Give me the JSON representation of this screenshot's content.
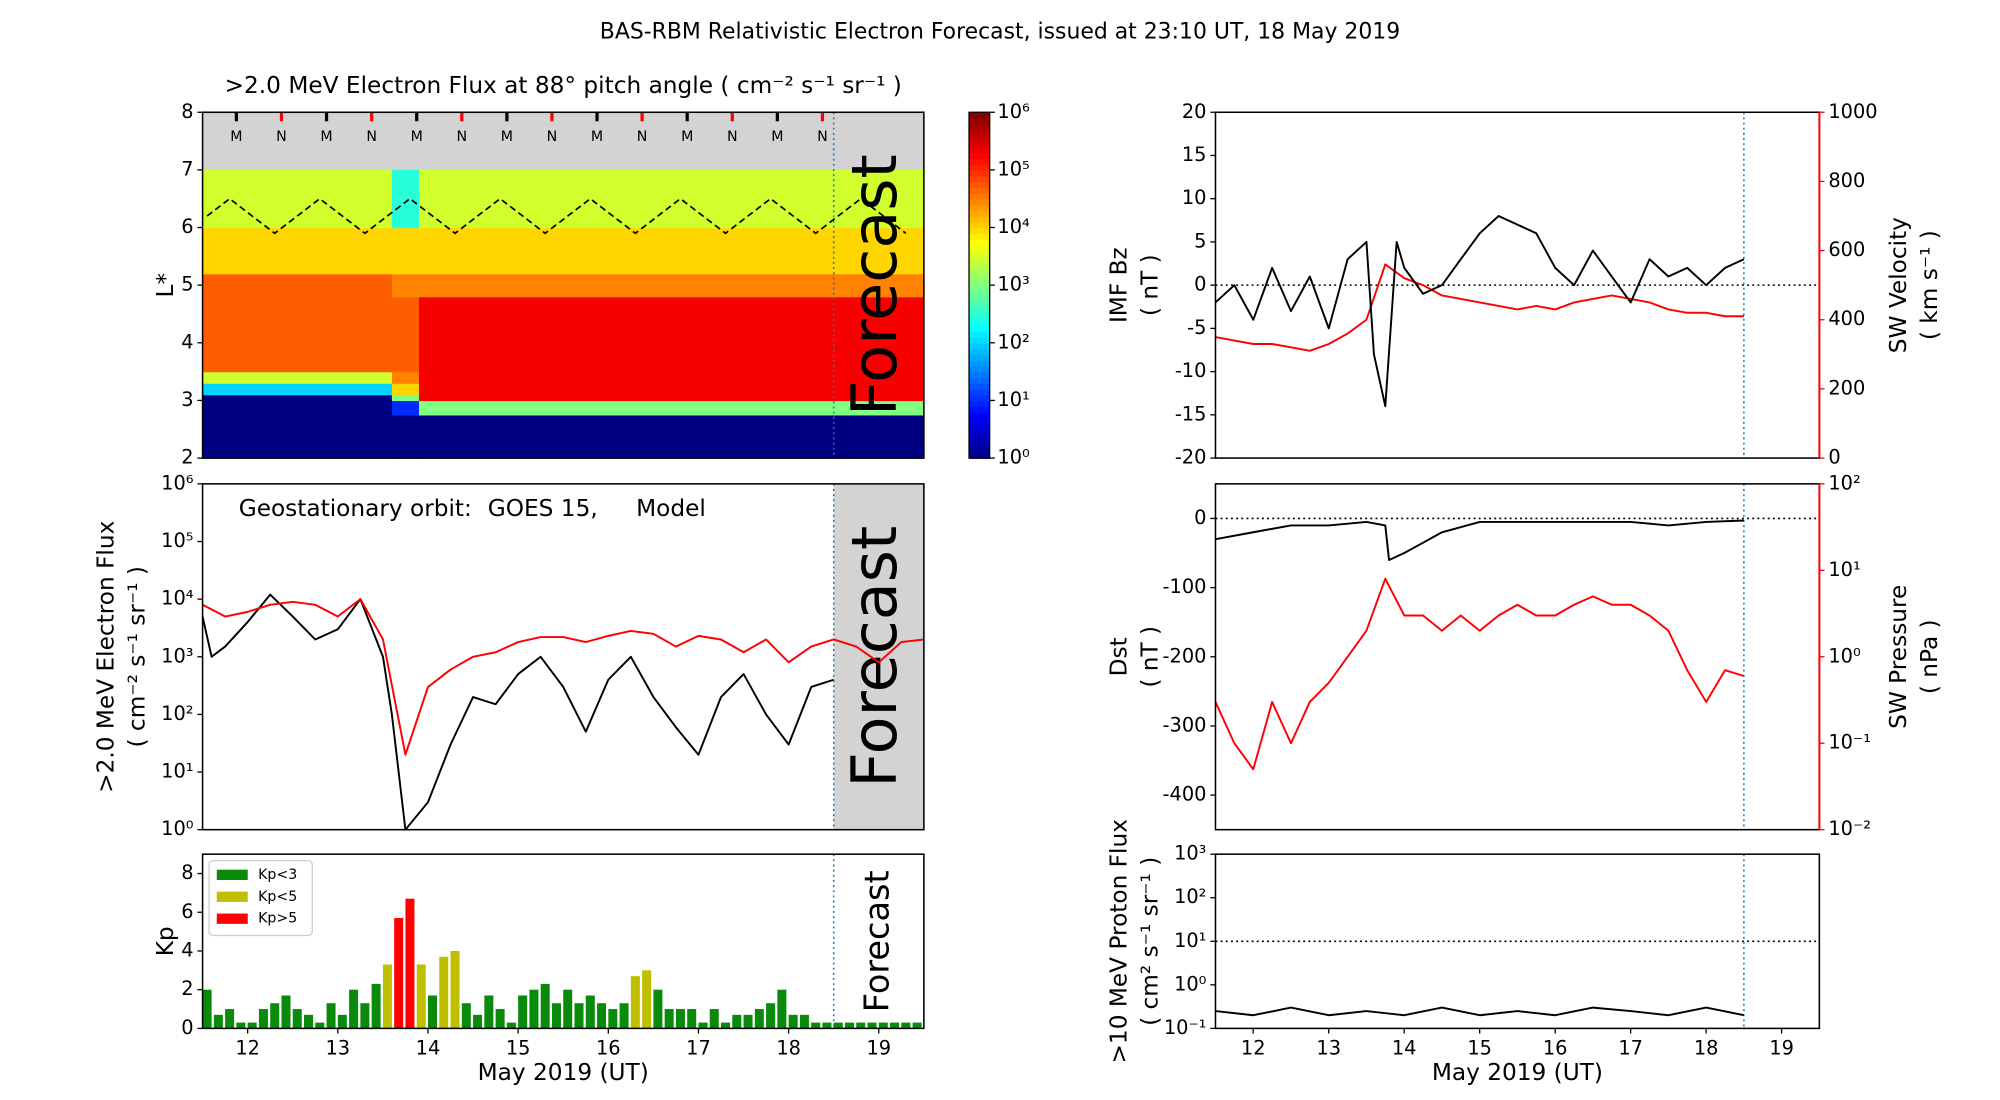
{
  "title": "BAS-RBM Relativistic Electron Forecast, issued at 23:10 UT, 18 May 2019",
  "chart_data": [
    {
      "type": "heatmap",
      "title": ">2.0 MeV Electron Flux at 88° pitch angle ( cm⁻² s⁻¹ sr⁻¹ )",
      "ylabel": [
        "L*"
      ],
      "xlim": [
        11.5,
        19.5
      ],
      "ylim": [
        2,
        8
      ],
      "yticks": [
        2,
        3,
        4,
        5,
        6,
        7,
        8
      ],
      "colormap": "jet",
      "x_edges": [
        11.5,
        13.6,
        13.9,
        19.5
      ],
      "y_edges": [
        2,
        2.75,
        3,
        3.1,
        3.3,
        3.5,
        4.8,
        5.2,
        6,
        7
      ],
      "z": [
        [
          1,
          1,
          1
        ],
        [
          1,
          10,
          1000
        ],
        [
          1,
          1000,
          200000
        ],
        [
          100,
          10000,
          200000
        ],
        [
          3000,
          30000,
          200000
        ],
        [
          50000,
          50000,
          200000
        ],
        [
          50000,
          30000,
          30000
        ],
        [
          10000,
          10000,
          10000
        ],
        [
          3000,
          300,
          3000
        ]
      ],
      "colorbar": {
        "lim": [
          1,
          1000000
        ],
        "ticks": [
          {
            "value": 1,
            "label": "10⁰"
          },
          {
            "value": 10,
            "label": "10¹"
          },
          {
            "value": 100,
            "label": "10²"
          },
          {
            "value": 1000,
            "label": "10³"
          },
          {
            "value": 10000,
            "label": "10⁴"
          },
          {
            "value": 100000,
            "label": "10⁵"
          },
          {
            "value": 1000000,
            "label": "10⁶"
          }
        ]
      },
      "dashed_line": {
        "color": "#000000",
        "x": [
          11.55,
          11.8,
          12.05,
          12.3,
          12.55,
          12.8,
          13.05,
          13.3,
          13.55,
          13.8,
          14.05,
          14.3,
          14.55,
          14.8,
          15.05,
          15.3,
          15.55,
          15.8,
          16.05,
          16.3,
          16.55,
          16.8,
          17.05,
          17.3,
          17.55,
          17.8,
          18.05,
          18.3,
          18.55,
          18.8,
          19.05,
          19.3
        ],
        "values": [
          6.2,
          6.5,
          6.2,
          5.9,
          6.2,
          6.5,
          6.2,
          5.9,
          6.2,
          6.5,
          6.2,
          5.9,
          6.2,
          6.5,
          6.2,
          5.9,
          6.2,
          6.5,
          6.2,
          5.9,
          6.2,
          6.5,
          6.2,
          5.9,
          6.2,
          6.5,
          6.2,
          5.9,
          6.2,
          6.5,
          6.2,
          5.9
        ]
      },
      "markers": [
        {
          "label": "M",
          "color": "#000000",
          "x": [
            11.875,
            12.875,
            13.875,
            14.875,
            15.875,
            16.875,
            17.875
          ]
        },
        {
          "label": "N",
          "color": "#ff0000",
          "x": [
            12.375,
            13.375,
            14.375,
            15.375,
            16.375,
            17.375,
            18.375
          ]
        }
      ],
      "forecast_start": 18.5,
      "forecast_text": "Forecast"
    },
    {
      "type": "line",
      "annotation": "Geostationary orbit:",
      "ylabel": [
        ">2.0 MeV Electron Flux",
        "( cm⁻² s⁻¹ sr⁻¹ )"
      ],
      "xlim": [
        11.5,
        19.5
      ],
      "ylim": [
        1,
        1000000
      ],
      "ylog": true,
      "yticks": [
        {
          "value": 1,
          "label": "10⁰"
        },
        {
          "value": 10,
          "label": "10¹"
        },
        {
          "value": 100,
          "label": "10²"
        },
        {
          "value": 1000,
          "label": "10³"
        },
        {
          "value": 10000,
          "label": "10⁴"
        },
        {
          "value": 100000,
          "label": "10⁵"
        },
        {
          "value": 1000000,
          "label": "10⁶"
        }
      ],
      "series": [
        {
          "name": "GOES 15,",
          "color": "#000000",
          "x": [
            11.5,
            11.6,
            11.75,
            12,
            12.25,
            12.5,
            12.75,
            13,
            13.25,
            13.5,
            13.6,
            13.75,
            14,
            14.25,
            14.5,
            14.75,
            15,
            15.25,
            15.5,
            15.75,
            16,
            16.25,
            16.5,
            16.75,
            17,
            17.25,
            17.5,
            17.75,
            18,
            18.25,
            18.5
          ],
          "values": [
            5000,
            1000,
            1500,
            4000,
            12000,
            5000,
            2000,
            3000,
            10000,
            1000,
            100,
            1,
            3,
            30,
            200,
            150,
            500,
            1000,
            300,
            50,
            400,
            1000,
            200,
            60,
            20,
            200,
            500,
            100,
            30,
            300,
            400
          ]
        },
        {
          "name": "Model",
          "color": "#ff0000",
          "x": [
            11.5,
            11.75,
            12,
            12.25,
            12.5,
            12.75,
            13,
            13.25,
            13.5,
            13.75,
            14,
            14.25,
            14.5,
            14.75,
            15,
            15.25,
            15.5,
            15.75,
            16,
            16.25,
            16.5,
            16.75,
            17,
            17.25,
            17.5,
            17.75,
            18,
            18.25,
            18.5,
            18.75,
            19,
            19.25,
            19.5
          ],
          "values": [
            8000,
            5000,
            6000,
            8000,
            9000,
            8000,
            5000,
            10000,
            2000,
            20,
            300,
            600,
            1000,
            1200,
            1800,
            2200,
            2200,
            1800,
            2300,
            2800,
            2500,
            1500,
            2300,
            2000,
            1200,
            2000,
            800,
            1500,
            2000,
            1500,
            800,
            1800,
            2000
          ]
        }
      ],
      "forecast_start": 18.5,
      "forecast_shade": true,
      "forecast_text": "Forecast"
    },
    {
      "type": "bar",
      "ylabel": [
        "Kp"
      ],
      "xlabel": "May 2019 (UT)",
      "xlim": [
        11.5,
        19.5
      ],
      "xticks": [
        12,
        13,
        14,
        15,
        16,
        17,
        18,
        19
      ],
      "ylim": [
        0,
        9
      ],
      "yticks": [
        0,
        2,
        4,
        6,
        8
      ],
      "legend": "upper left",
      "x": [
        11.5,
        11.625,
        11.75,
        11.875,
        12,
        12.125,
        12.25,
        12.375,
        12.5,
        12.625,
        12.75,
        12.875,
        13,
        13.125,
        13.25,
        13.375,
        13.5,
        13.625,
        13.75,
        13.875,
        14,
        14.125,
        14.25,
        14.375,
        14.5,
        14.625,
        14.75,
        14.875,
        15,
        15.125,
        15.25,
        15.375,
        15.5,
        15.625,
        15.75,
        15.875,
        16,
        16.125,
        16.25,
        16.375,
        16.5,
        16.625,
        16.75,
        16.875,
        17,
        17.125,
        17.25,
        17.375,
        17.5,
        17.625,
        17.75,
        17.875,
        18,
        18.125,
        18.25,
        18.375,
        18.5,
        18.625,
        18.75,
        18.875,
        19,
        19.125,
        19.25,
        19.375
      ],
      "series": [
        {
          "name": "Kp<3",
          "color": "#0a8a0a",
          "values": [
            2.0,
            0.7,
            1.0,
            0.3,
            0.3,
            1.0,
            1.3,
            1.7,
            1.0,
            0.7,
            0.3,
            1.3,
            0.7,
            2.0,
            1.3,
            2.3,
            null,
            null,
            null,
            null,
            1.7,
            null,
            null,
            1.3,
            0.7,
            1.7,
            1.0,
            0.3,
            1.7,
            2.0,
            2.3,
            1.3,
            2.0,
            1.3,
            1.7,
            1.3,
            1.0,
            1.3,
            null,
            null,
            2.0,
            1.0,
            1.0,
            1.0,
            0.3,
            1.0,
            0.3,
            0.7,
            0.7,
            1.0,
            1.3,
            2.0,
            0.7,
            0.7,
            0.3,
            0.3,
            0.3,
            0.3,
            0.3,
            0.3,
            0.3,
            0.3,
            0.3,
            0.3
          ]
        },
        {
          "name": "Kp<5",
          "color": "#bfbf00",
          "values": [
            null,
            null,
            null,
            null,
            null,
            null,
            null,
            null,
            null,
            null,
            null,
            null,
            null,
            null,
            null,
            null,
            3.3,
            null,
            null,
            3.3,
            null,
            3.7,
            4.0,
            null,
            null,
            null,
            null,
            null,
            null,
            null,
            null,
            null,
            null,
            null,
            null,
            null,
            null,
            null,
            2.7,
            3.0,
            null,
            null,
            null,
            null,
            null,
            null,
            null,
            null,
            null,
            null,
            null,
            null,
            null,
            null,
            null,
            null,
            null,
            null,
            null,
            null,
            null,
            null,
            null,
            null
          ]
        },
        {
          "name": "Kp>5",
          "color": "#ff0000",
          "values": [
            null,
            null,
            null,
            null,
            null,
            null,
            null,
            null,
            null,
            null,
            null,
            null,
            null,
            null,
            null,
            null,
            null,
            5.7,
            6.7,
            null,
            null,
            null,
            null,
            null,
            null,
            null,
            null,
            null,
            null,
            null,
            null,
            null,
            null,
            null,
            null,
            null,
            null,
            null,
            null,
            null,
            null,
            null,
            null,
            null,
            null,
            null,
            null,
            null,
            null,
            null,
            null,
            null,
            null,
            null,
            null,
            null,
            null,
            null,
            null,
            null,
            null,
            null,
            null,
            null
          ]
        }
      ],
      "forecast_start": 18.5,
      "forecast_text": "Forecast"
    },
    {
      "type": "line",
      "ylabel": [
        "IMF Bz",
        "( nT )"
      ],
      "y2label": [
        "SW Velocity",
        "( km s⁻¹ )"
      ],
      "xlim": [
        11.5,
        19.5
      ],
      "ylim": [
        -20,
        20
      ],
      "yticks": [
        -20,
        -15,
        -10,
        -5,
        0,
        5,
        10,
        15,
        20
      ],
      "y2lim": [
        0,
        1000
      ],
      "y2ticks": [
        0,
        200,
        400,
        600,
        800,
        1000
      ],
      "y2color": "#ff0000",
      "ref_line": 0,
      "series": [
        {
          "color": "#ff0000",
          "axis": "y2",
          "x": [
            11.5,
            11.75,
            12,
            12.25,
            12.5,
            12.75,
            13,
            13.25,
            13.5,
            13.75,
            14,
            14.25,
            14.5,
            14.75,
            15,
            15.25,
            15.5,
            15.75,
            16,
            16.25,
            16.5,
            16.75,
            17,
            17.25,
            17.5,
            17.75,
            18,
            18.25,
            18.5
          ],
          "values": [
            350,
            340,
            330,
            330,
            320,
            310,
            330,
            360,
            400,
            560,
            520,
            500,
            470,
            460,
            450,
            440,
            430,
            440,
            430,
            450,
            460,
            470,
            460,
            450,
            430,
            420,
            420,
            410,
            410
          ]
        },
        {
          "color": "#000000",
          "x": [
            11.5,
            11.75,
            12,
            12.25,
            12.5,
            12.75,
            13,
            13.25,
            13.5,
            13.6,
            13.75,
            13.9,
            14,
            14.25,
            14.5,
            14.75,
            15,
            15.25,
            15.5,
            15.75,
            16,
            16.25,
            16.5,
            16.75,
            17,
            17.25,
            17.5,
            17.75,
            18,
            18.25,
            18.5
          ],
          "values": [
            -2,
            0,
            -4,
            2,
            -3,
            1,
            -5,
            3,
            5,
            -8,
            -14,
            5,
            2,
            -1,
            0,
            3,
            6,
            8,
            7,
            6,
            2,
            0,
            4,
            1,
            -2,
            3,
            1,
            2,
            0,
            2,
            3
          ]
        }
      ],
      "forecast_start": 18.5
    },
    {
      "type": "line",
      "ylabel": [
        "Dst",
        "( nT )"
      ],
      "y2label": [
        "SW Pressure",
        "( nPa )"
      ],
      "xlim": [
        11.5,
        19.5
      ],
      "ylim": [
        -450,
        50
      ],
      "yticks": [
        -400,
        -300,
        -200,
        -100,
        0
      ],
      "y2lim": [
        0.01,
        100
      ],
      "y2log": true,
      "y2color": "#ff0000",
      "y2ticks": [
        {
          "value": 0.01,
          "label": "10⁻²"
        },
        {
          "value": 0.1,
          "label": "10⁻¹"
        },
        {
          "value": 1,
          "label": "10⁰"
        },
        {
          "value": 10,
          "label": "10¹"
        },
        {
          "value": 100,
          "label": "10²"
        }
      ],
      "ref_line": 0,
      "series": [
        {
          "color": "#ff0000",
          "axis": "y2",
          "x": [
            11.5,
            11.75,
            12,
            12.25,
            12.5,
            12.75,
            13,
            13.25,
            13.5,
            13.75,
            14,
            14.25,
            14.5,
            14.75,
            15,
            15.25,
            15.5,
            15.75,
            16,
            16.25,
            16.5,
            16.75,
            17,
            17.25,
            17.5,
            17.75,
            18,
            18.25,
            18.5
          ],
          "values": [
            0.3,
            0.1,
            0.05,
            0.3,
            0.1,
            0.3,
            0.5,
            1,
            2,
            8,
            3,
            3,
            2,
            3,
            2,
            3,
            4,
            3,
            3,
            4,
            5,
            4,
            4,
            3,
            2,
            0.7,
            0.3,
            0.7,
            0.6
          ]
        },
        {
          "color": "#000000",
          "x": [
            11.5,
            12,
            12.5,
            13,
            13.5,
            13.75,
            13.8,
            14,
            14.25,
            14.5,
            15,
            15.5,
            16,
            16.5,
            17,
            17.5,
            18,
            18.5
          ],
          "values": [
            -30,
            -20,
            -10,
            -10,
            -5,
            -10,
            -60,
            -50,
            -35,
            -20,
            -5,
            -5,
            -5,
            -5,
            -5,
            -10,
            -5,
            -3
          ]
        }
      ],
      "forecast_start": 18.5
    },
    {
      "type": "line",
      "ylabel": [
        ">10 MeV Proton Flux",
        "( cm² s⁻¹ sr⁻¹ )"
      ],
      "xlabel": "May 2019 (UT)",
      "xlim": [
        11.5,
        19.5
      ],
      "xticks": [
        12,
        13,
        14,
        15,
        16,
        17,
        18,
        19
      ],
      "ylim": [
        0.1,
        1000
      ],
      "ylog": true,
      "yticks": [
        {
          "value": 0.1,
          "label": "10⁻¹"
        },
        {
          "value": 1,
          "label": "10⁰"
        },
        {
          "value": 10,
          "label": "10¹"
        },
        {
          "value": 100,
          "label": "10²"
        },
        {
          "value": 1000,
          "label": "10³"
        }
      ],
      "ref_line": 10,
      "series": [
        {
          "color": "#000000",
          "x": [
            11.5,
            12,
            12.5,
            13,
            13.5,
            14,
            14.5,
            15,
            15.5,
            16,
            16.5,
            17,
            17.5,
            18,
            18.5
          ],
          "values": [
            0.25,
            0.2,
            0.3,
            0.2,
            0.25,
            0.2,
            0.3,
            0.2,
            0.25,
            0.2,
            0.3,
            0.25,
            0.2,
            0.3,
            0.2
          ]
        }
      ],
      "forecast_start": 18.5
    }
  ]
}
